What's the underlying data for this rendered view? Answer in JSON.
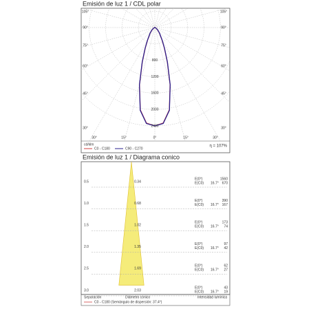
{
  "polar": {
    "title": "Emisión de luz 1 / CDL polar",
    "side_labels": [
      "105°",
      "90°",
      "75°",
      "60°",
      "45°",
      "30°"
    ],
    "bottom_labels": [
      "30°",
      "15°",
      "0°",
      "15°",
      "30°"
    ],
    "radial_ticks": [
      400,
      800,
      1200,
      1600,
      2000,
      2400
    ],
    "unit": "cd/klm",
    "efficiency": "η = 107%",
    "angles": [
      0,
      5,
      10,
      15,
      20,
      25,
      30,
      40,
      50,
      60,
      70,
      80,
      90
    ],
    "series": [
      {
        "name": "C0 - C180",
        "color": "#d04040",
        "values": [
          2400,
          2340,
          2040,
          1440,
          890,
          550,
          350,
          175,
          85,
          38,
          14,
          5,
          0
        ]
      },
      {
        "name": "C90 - C270",
        "color": "#2a1f8c",
        "values": [
          2400,
          2350,
          2050,
          1450,
          900,
          560,
          360,
          180,
          90,
          40,
          15,
          5,
          0
        ]
      }
    ]
  },
  "cone": {
    "title": "Emisión de luz 1 / Diagrama conico",
    "rows": [
      {
        "distance": "0.5",
        "diameter": "0.34",
        "e0_label": "E(0°)",
        "e0": "1560",
        "ec0_label": "E(C0)",
        "angle": "16.7°",
        "ec0": "670"
      },
      {
        "distance": "1.0",
        "diameter": "0.68",
        "e0_label": "E(0°)",
        "e0": "390",
        "ec0_label": "E(C0)",
        "angle": "16.7°",
        "ec0": "167"
      },
      {
        "distance": "1.5",
        "diameter": "1.02",
        "e0_label": "E(0°)",
        "e0": "173",
        "ec0_label": "E(C0)",
        "angle": "16.7°",
        "ec0": "74"
      },
      {
        "distance": "2.0",
        "diameter": "1.35",
        "e0_label": "E(0°)",
        "e0": "97",
        "ec0_label": "E(C0)",
        "angle": "16.7°",
        "ec0": "42"
      },
      {
        "distance": "2.5",
        "diameter": "1.69",
        "e0_label": "E(0°)",
        "e0": "62",
        "ec0_label": "E(C0)",
        "angle": "16.7°",
        "ec0": "27"
      },
      {
        "distance": "3.0",
        "diameter": "2.03",
        "e0_label": "E(0°)",
        "e0": "43",
        "ec0_label": "E(C0)",
        "angle": "16.7°",
        "ec0": "19"
      }
    ],
    "footer": {
      "separation": "Separación",
      "diameter": "Diámetro cónico",
      "intensity": "Intensidad lumínica",
      "note": "C0 - C180 (Semángulo de dispersión: 37.4°)"
    }
  }
}
